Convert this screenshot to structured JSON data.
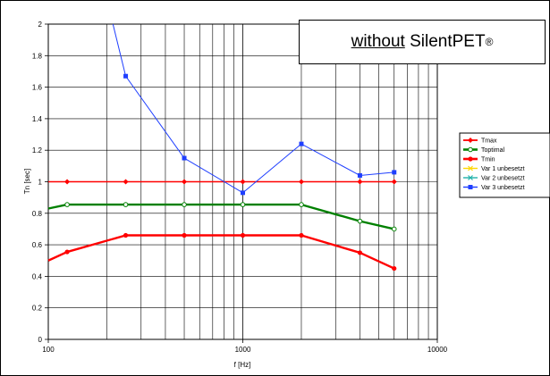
{
  "annotation": {
    "underlined": "without",
    "text": "SilentPET",
    "superscript": "®"
  },
  "chart_data": {
    "type": "line",
    "title": "",
    "xlabel": "f [Hz]",
    "ylabel": "Tn [sec]",
    "xscale": "log",
    "xlim": [
      100,
      10000
    ],
    "ylim": [
      0,
      2
    ],
    "x_ticks": [
      "100",
      "1000",
      "10000"
    ],
    "y_ticks": [
      "0",
      "0.2",
      "0.4",
      "0.6",
      "0.8",
      "1",
      "1.2",
      "1.4",
      "1.6",
      "1.8",
      "2"
    ],
    "grid": true,
    "legend_position": "right",
    "series": [
      {
        "name": "Tmax",
        "color": "#ff0000",
        "marker": "diamond",
        "line_width": 1.4,
        "x": [
          100,
          125,
          250,
          500,
          1000,
          2000,
          4000,
          6000
        ],
        "y": [
          1.0,
          1.0,
          1.0,
          1.0,
          1.0,
          1.0,
          1.0,
          1.0
        ],
        "marked": [
          false,
          true,
          true,
          true,
          true,
          true,
          true,
          true
        ]
      },
      {
        "name": "Toptimal",
        "color": "#008000",
        "marker": "circle-open",
        "line_width": 2.4,
        "x": [
          100,
          125,
          250,
          500,
          1000,
          2000,
          4000,
          6000
        ],
        "y": [
          0.83,
          0.855,
          0.855,
          0.855,
          0.855,
          0.855,
          0.75,
          0.7
        ],
        "marked": [
          false,
          true,
          true,
          true,
          true,
          true,
          true,
          true
        ]
      },
      {
        "name": "Tmin",
        "color": "#ff0000",
        "marker": "dot",
        "line_width": 2.4,
        "x": [
          100,
          125,
          250,
          500,
          1000,
          2000,
          4000,
          6000
        ],
        "y": [
          0.5,
          0.555,
          0.66,
          0.66,
          0.66,
          0.66,
          0.55,
          0.45
        ],
        "marked": [
          false,
          true,
          true,
          true,
          true,
          true,
          true,
          true
        ]
      },
      {
        "name": "Var 1 unbesetzt",
        "color": "#ffd700",
        "marker": "x",
        "line_width": 1,
        "x": [],
        "y": []
      },
      {
        "name": "Var 2 unbesetzt",
        "color": "#20b2aa",
        "marker": "x",
        "line_width": 1,
        "x": [],
        "y": []
      },
      {
        "name": "Var 3 unbesetzt",
        "color": "#1f3fff",
        "marker": "square",
        "line_width": 1,
        "x": [
          215,
          250,
          500,
          1000,
          2000,
          4000,
          6000
        ],
        "y": [
          2.0,
          1.67,
          1.15,
          0.93,
          1.24,
          1.04,
          1.06
        ],
        "marked": [
          false,
          true,
          true,
          true,
          true,
          true,
          true
        ]
      }
    ]
  }
}
